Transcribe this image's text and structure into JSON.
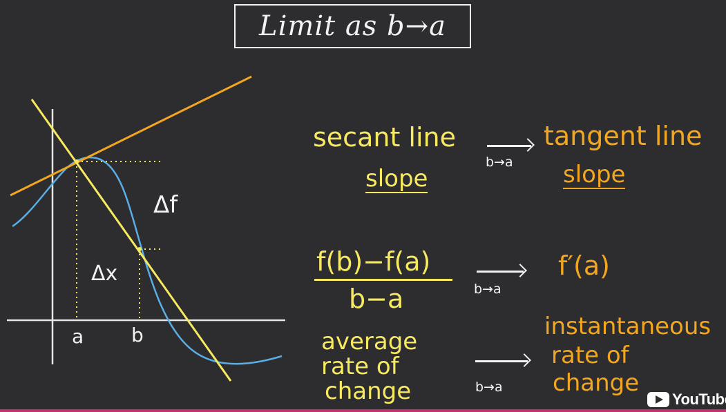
{
  "title": "Limit as b→a",
  "graph": {
    "label_delta_f": "Δf",
    "label_delta_x": "Δx",
    "label_a": "a",
    "label_b": "b"
  },
  "row1": {
    "left": "secant line",
    "left_sub": "slope",
    "arrow_label": "b→a",
    "right": "tangent line",
    "right_sub": "slope"
  },
  "row2": {
    "numerator": "f(b)−f(a)",
    "denominator": "b−a",
    "arrow_label": "b→a",
    "right": "f′(a)"
  },
  "row3": {
    "left_line1": "average",
    "left_line2": "rate of",
    "left_line3": "change",
    "arrow_label": "b→a",
    "right_line1": "instantaneous",
    "right_line2": "rate of",
    "right_line3": "change"
  },
  "watermark": "YouTube",
  "colors": {
    "background": "#2d2d2f",
    "secant": "#f7e960",
    "tangent": "#f3a61f",
    "curve": "#5aaee6",
    "axes": "#e6e6e6"
  }
}
